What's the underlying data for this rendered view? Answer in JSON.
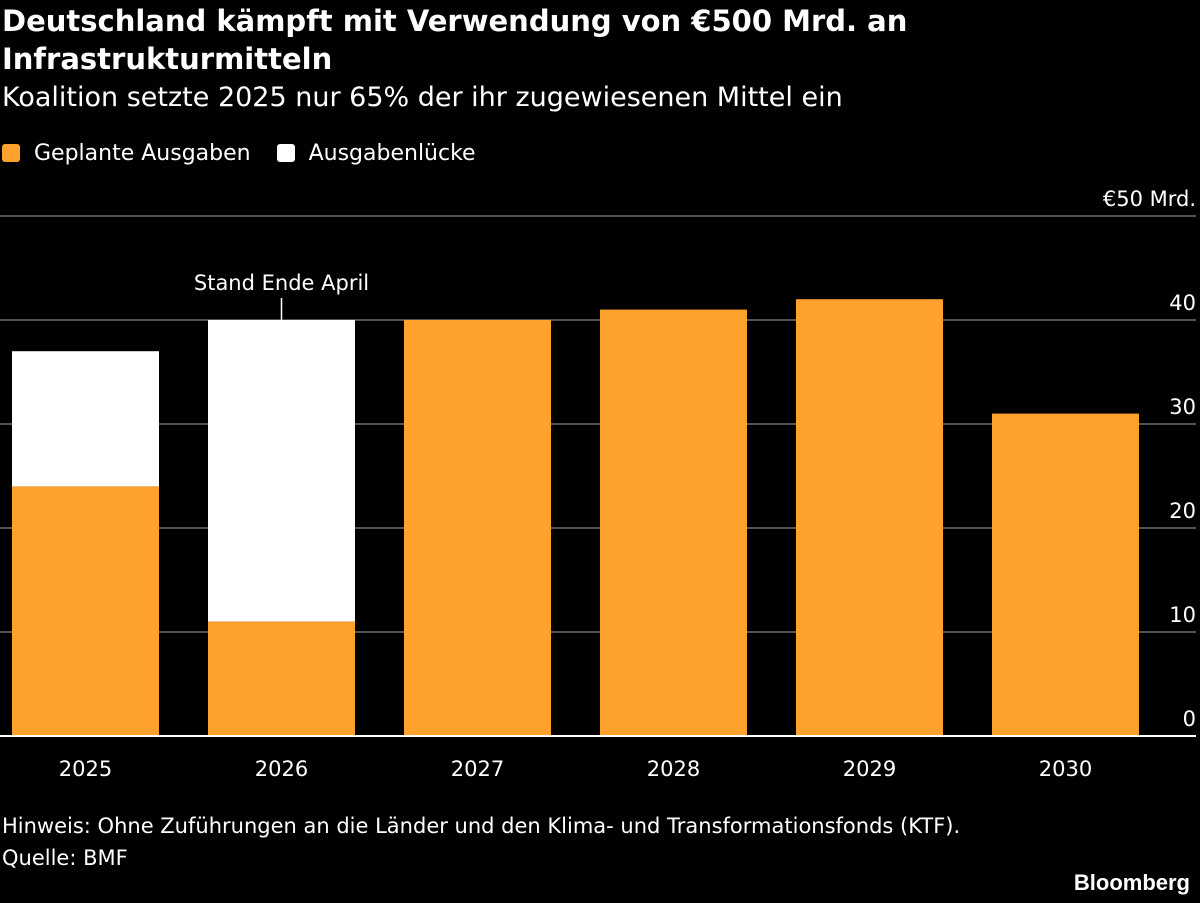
{
  "title": "Deutschland kämpft mit Verwendung von €500 Mrd. an Infrastrukturmitteln",
  "subtitle": "Koalition setzte 2025 nur 65% der ihr zugewiesenen Mittel ein",
  "legend": [
    {
      "label": "Geplante Ausgaben",
      "color": "#ffa12c"
    },
    {
      "label": "Ausgabenlücke",
      "color": "#ffffff"
    }
  ],
  "chart_data": {
    "type": "bar",
    "stacked": true,
    "categories": [
      "2025",
      "2026",
      "2027",
      "2028",
      "2029",
      "2030"
    ],
    "series": [
      {
        "name": "Geplante Ausgaben",
        "color": "#ffa12c",
        "values": [
          24,
          11,
          40,
          41,
          42,
          31
        ]
      },
      {
        "name": "Ausgabenlücke",
        "color": "#ffffff",
        "values": [
          13,
          29,
          0,
          0,
          0,
          0
        ]
      }
    ],
    "ylim": [
      0,
      50
    ],
    "yticks": [
      {
        "value": 50,
        "label": "€50 Mrd."
      },
      {
        "value": 40,
        "label": "40"
      },
      {
        "value": 30,
        "label": "30"
      },
      {
        "value": 20,
        "label": "20"
      },
      {
        "value": 10,
        "label": "10"
      },
      {
        "value": 0,
        "label": "0"
      }
    ],
    "grid": true,
    "annotation": {
      "text": "Stand Ende April",
      "category": "2026"
    }
  },
  "footnote": {
    "note": "Hinweis: Ohne Zuführungen an die Länder und den Klima- und Transformationsfonds (KTF).",
    "source": "Quelle: BMF"
  },
  "brand": "Bloomberg"
}
